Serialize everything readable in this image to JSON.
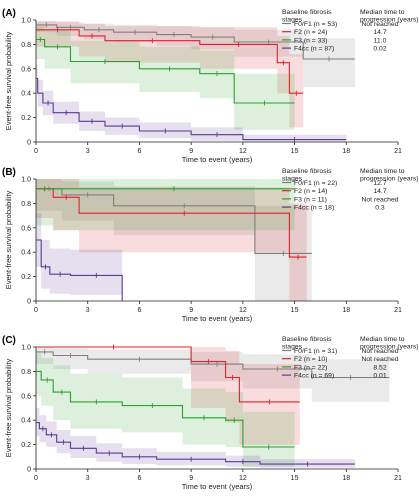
{
  "colors": {
    "F0/F1": "#7f7f7f",
    "F2": "#d9262b",
    "F3": "#2ca02c",
    "F4cc": "#5b3a96",
    "axis": "#222222"
  },
  "chart_data": [
    {
      "type": "line",
      "step": true,
      "confidence_bands": true,
      "panel_label": "(A)",
      "ylabel": "Event-free survival probability",
      "xlabel": "Time to event (years)",
      "xlim": [
        0,
        21
      ],
      "ylim": [
        0,
        1.0
      ],
      "x_ticks": [
        0,
        3,
        6,
        9,
        12,
        15,
        18,
        21
      ],
      "y_ticks": [
        0,
        0.2,
        0.4,
        0.6,
        0.8,
        1.0
      ],
      "y_tick_labels": [
        "0",
        "0.2",
        "0.4",
        "0.6",
        "0.8",
        "1.0"
      ],
      "legend_title": "Baseline fibrosis stages",
      "legend_value_title": "Median time to progression (years)",
      "legend_position": "top-right",
      "series": [
        {
          "name": "F0/F1 (n = 53)",
          "color_key": "F0/F1",
          "median": "Not reached",
          "x": [
            0,
            1.2,
            2.8,
            4.5,
            7.0,
            9.0,
            11.5,
            15.5,
            18.5
          ],
          "y": [
            0.96,
            0.94,
            0.92,
            0.9,
            0.88,
            0.86,
            0.82,
            0.68,
            0.68
          ],
          "band_upper": [
            0.99,
            0.98,
            0.97,
            0.96,
            0.95,
            0.94,
            0.92,
            0.85,
            0.85
          ],
          "band_lower": [
            0.9,
            0.87,
            0.84,
            0.82,
            0.79,
            0.76,
            0.7,
            0.45,
            0.45
          ]
        },
        {
          "name": "F2 (n = 24)",
          "color_key": "F2",
          "median": "14.7",
          "x": [
            0,
            2.5,
            4.0,
            9.5,
            14.0,
            14.7,
            15.5
          ],
          "y": [
            0.92,
            0.87,
            0.83,
            0.8,
            0.65,
            0.4,
            0.4
          ],
          "band_upper": [
            0.99,
            0.97,
            0.95,
            0.94,
            0.87,
            0.72,
            0.72
          ],
          "band_lower": [
            0.78,
            0.7,
            0.65,
            0.6,
            0.4,
            0.12,
            0.12
          ]
        },
        {
          "name": "F3 (n = 33)",
          "color_key": "F3",
          "median": "11.0",
          "x": [
            0,
            0.5,
            2.0,
            6.0,
            9.5,
            11.5,
            15.0
          ],
          "y": [
            0.84,
            0.78,
            0.66,
            0.6,
            0.56,
            0.32,
            0.32
          ],
          "band_upper": [
            0.95,
            0.92,
            0.83,
            0.78,
            0.75,
            0.56,
            0.56
          ],
          "band_lower": [
            0.68,
            0.6,
            0.48,
            0.41,
            0.36,
            0.1,
            0.1
          ]
        },
        {
          "name": "F4cc (n = 87)",
          "color_key": "F4cc",
          "median": "0.02",
          "x": [
            0,
            0.1,
            0.4,
            1.0,
            2.5,
            4.0,
            6.0,
            9.0,
            12.0,
            18.0
          ],
          "y": [
            0.52,
            0.4,
            0.32,
            0.24,
            0.17,
            0.13,
            0.09,
            0.06,
            0.02,
            0.02
          ],
          "band_upper": [
            0.63,
            0.51,
            0.42,
            0.33,
            0.25,
            0.2,
            0.16,
            0.12,
            0.06,
            0.06
          ],
          "band_lower": [
            0.41,
            0.29,
            0.22,
            0.15,
            0.09,
            0.06,
            0.03,
            0.01,
            0.0,
            0.0
          ]
        }
      ]
    },
    {
      "type": "line",
      "step": true,
      "confidence_bands": true,
      "panel_label": "(B)",
      "ylabel": "Event-free survival probability",
      "xlabel": "Time to event (years)",
      "xlim": [
        0,
        21
      ],
      "ylim": [
        0,
        1.0
      ],
      "x_ticks": [
        0,
        3,
        6,
        9,
        12,
        15,
        18,
        21
      ],
      "y_ticks": [
        0,
        0.2,
        0.4,
        0.6,
        0.8,
        1.0
      ],
      "y_tick_labels": [
        "0",
        "0.2",
        "0.4",
        "0.6",
        "0.8",
        "1.0"
      ],
      "legend_title": "Baseline fibrosis stages",
      "legend_value_title": "Median time to progression (years)",
      "legend_position": "top-right",
      "series": [
        {
          "name": "F0/F1 (n = 22)",
          "color_key": "F0/F1",
          "median": "12.7",
          "x": [
            0,
            1.5,
            4.5,
            12.7,
            16.0
          ],
          "y": [
            0.92,
            0.87,
            0.78,
            0.39,
            0.39
          ],
          "band_upper": [
            1.0,
            0.98,
            0.94,
            0.78,
            0.78
          ],
          "band_lower": [
            0.74,
            0.66,
            0.54,
            0.0,
            0.0
          ]
        },
        {
          "name": "F2 (n = 14)",
          "color_key": "F2",
          "median": "14.7",
          "x": [
            0,
            1.0,
            2.5,
            14.7,
            15.7
          ],
          "y": [
            0.92,
            0.85,
            0.72,
            0.36,
            0.36
          ],
          "band_upper": [
            1.0,
            1.0,
            0.93,
            0.8,
            0.8
          ],
          "band_lower": [
            0.68,
            0.58,
            0.4,
            0.0,
            0.0
          ]
        },
        {
          "name": "F3 (n = 11)",
          "color_key": "F3",
          "median": "Not reached",
          "x": [
            0,
            1.0,
            15.0
          ],
          "y": [
            0.92,
            0.92,
            0.92
          ],
          "band_upper": [
            1.0,
            1.0,
            1.0
          ],
          "band_lower": [
            0.62,
            0.58,
            0.58
          ]
        },
        {
          "name": "F4cc (n = 18)",
          "color_key": "F4cc",
          "median": "0.3",
          "x": [
            0,
            0.3,
            0.8,
            2.0,
            5.0
          ],
          "y": [
            0.5,
            0.28,
            0.22,
            0.21,
            0.0
          ],
          "band_upper": [
            0.72,
            0.5,
            0.43,
            0.42,
            0.0
          ],
          "band_lower": [
            0.28,
            0.1,
            0.06,
            0.05,
            0.0
          ]
        }
      ]
    },
    {
      "type": "line",
      "step": true,
      "confidence_bands": true,
      "panel_label": "(C)",
      "ylabel": "Event-free survival probability",
      "xlabel": "Time to event (years)",
      "xlim": [
        0,
        21
      ],
      "ylim": [
        0,
        1.0
      ],
      "x_ticks": [
        0,
        3,
        6,
        9,
        12,
        15,
        18,
        21
      ],
      "y_ticks": [
        0,
        0.2,
        0.4,
        0.6,
        0.8,
        1.0
      ],
      "y_tick_labels": [
        "0",
        "0.2",
        "0.4",
        "0.6",
        "0.8",
        "1.0"
      ],
      "legend_title": "Baseline fibrosis stages",
      "legend_value_title": "Median time to progression (years)",
      "legend_position": "top-right",
      "series": [
        {
          "name": "F0/F1 (n = 31)",
          "color_key": "F0/F1",
          "median": "Not reached",
          "x": [
            0,
            1.0,
            3.0,
            9.0,
            12.0,
            16.0,
            20.5
          ],
          "y": [
            0.96,
            0.93,
            0.9,
            0.86,
            0.82,
            0.75,
            0.75
          ],
          "band_upper": [
            1.0,
            0.99,
            0.98,
            0.96,
            0.94,
            0.9,
            0.9
          ],
          "band_lower": [
            0.86,
            0.82,
            0.78,
            0.72,
            0.66,
            0.55,
            0.55
          ]
        },
        {
          "name": "F2 (n = 10)",
          "color_key": "F2",
          "median": "Not reached",
          "x": [
            0,
            9.0,
            11.0,
            11.8,
            15.3
          ],
          "y": [
            1.0,
            0.88,
            0.75,
            0.55,
            0.55
          ],
          "band_upper": [
            1.0,
            1.0,
            0.97,
            0.86,
            0.86
          ],
          "band_lower": [
            1.0,
            0.5,
            0.38,
            0.2,
            0.2
          ]
        },
        {
          "name": "F3 (n = 22)",
          "color_key": "F3",
          "median": "8.52",
          "x": [
            0,
            0.3,
            1.0,
            2.0,
            5.0,
            8.5,
            11.0,
            12.0,
            15.0
          ],
          "y": [
            0.8,
            0.73,
            0.63,
            0.55,
            0.52,
            0.42,
            0.4,
            0.18,
            0.18
          ],
          "band_upper": [
            0.95,
            0.91,
            0.85,
            0.78,
            0.75,
            0.66,
            0.63,
            0.47,
            0.47
          ],
          "band_lower": [
            0.6,
            0.52,
            0.4,
            0.33,
            0.3,
            0.2,
            0.18,
            0.02,
            0.02
          ]
        },
        {
          "name": "F4cc (n = 69)",
          "color_key": "F4cc",
          "median": "0.01",
          "x": [
            0,
            0.2,
            0.6,
            1.2,
            2.0,
            3.5,
            5.0,
            7.0,
            11.0,
            13.0,
            18.5
          ],
          "y": [
            0.38,
            0.33,
            0.28,
            0.22,
            0.17,
            0.13,
            0.1,
            0.08,
            0.06,
            0.04,
            0.04
          ],
          "band_upper": [
            0.5,
            0.44,
            0.39,
            0.32,
            0.27,
            0.21,
            0.17,
            0.14,
            0.11,
            0.08,
            0.08
          ],
          "band_lower": [
            0.27,
            0.22,
            0.18,
            0.13,
            0.09,
            0.06,
            0.04,
            0.03,
            0.02,
            0.01,
            0.01
          ]
        }
      ]
    }
  ]
}
